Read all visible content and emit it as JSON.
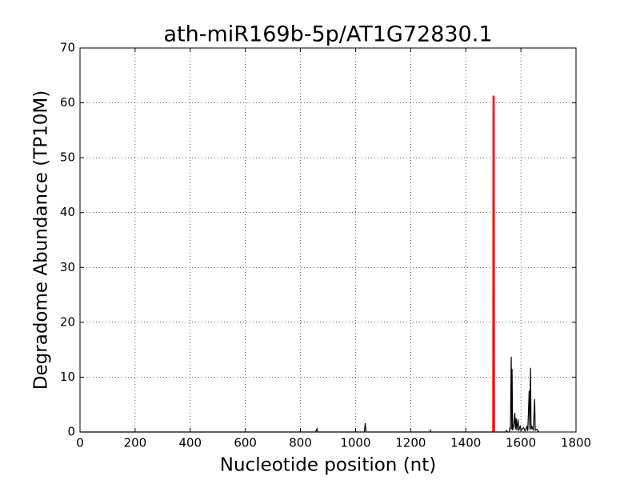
{
  "chart_data": {
    "type": "line",
    "title": "ath-miR169b-5p/AT1G72830.1",
    "xlabel": "Nucleotide position (nt)",
    "ylabel": "Degradome Abundance (TP10M)",
    "xlim": [
      0,
      1800
    ],
    "ylim": [
      0,
      70
    ],
    "xticks": [
      0,
      200,
      400,
      600,
      800,
      1000,
      1200,
      1400,
      1600,
      1800
    ],
    "yticks": [
      0,
      10,
      20,
      30,
      40,
      50,
      60,
      70
    ],
    "grid": true,
    "series": [
      {
        "color": "#000000",
        "x": [
          0,
          855,
          860,
          863,
          1032,
          1035,
          1038,
          1270,
          1272,
          1274,
          1545,
          1548,
          1551,
          1558,
          1560,
          1562,
          1565,
          1567,
          1568,
          1570,
          1575,
          1578,
          1580,
          1583,
          1585,
          1590,
          1592,
          1598,
          1600,
          1610,
          1615,
          1622,
          1625,
          1630,
          1632,
          1635,
          1637,
          1640,
          1645,
          1650,
          1652,
          1658,
          1665
        ],
        "values": [
          0,
          0,
          0.6,
          0,
          0,
          1.6,
          0,
          0,
          0.3,
          0,
          0,
          0.3,
          0,
          0,
          0.8,
          0.5,
          13.7,
          0.5,
          11.5,
          0.3,
          1.5,
          3.5,
          0.5,
          2.5,
          0.3,
          2.3,
          0.2,
          1.2,
          0.3,
          0.8,
          0.2,
          1,
          0.2,
          7.5,
          0.5,
          11.7,
          0.5,
          1,
          0.3,
          6,
          0.3,
          0.5,
          0
        ]
      },
      {
        "color": "#ff0000",
        "x": [
          1499,
          1500,
          1502,
          1503
        ],
        "values": [
          0,
          61.3,
          61,
          0
        ]
      }
    ]
  }
}
